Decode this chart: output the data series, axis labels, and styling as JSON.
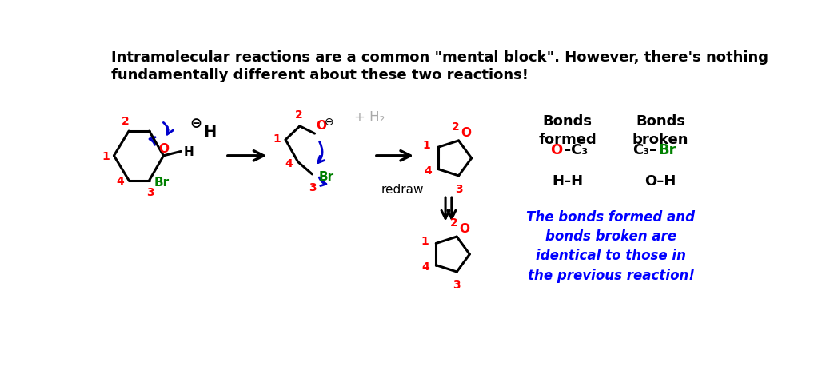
{
  "title": "Intramolecular reactions are a common \"mental block\". However, there's nothing\nfundamentally different about these two reactions!",
  "title_fontsize": 13,
  "title_color": "#000000",
  "background_color": "#ffffff",
  "bonds_formed_header": "Bonds\nformed",
  "bonds_broken_header": "Bonds\nbroken",
  "bond_formed_2": "H–H",
  "bond_broken_2": "O–H",
  "italic_blue_text": "The bonds formed and\nbonds broken are\nidentical to those in\nthe previous reaction!",
  "plus_h2_text": "+ H₂",
  "redraw_text": "redraw",
  "red_color": "#ff0000",
  "green_color": "#008000",
  "blue_color": "#0000ff",
  "gray_color": "#aaaaaa",
  "black_color": "#000000",
  "arrow_color": "#0000cc"
}
